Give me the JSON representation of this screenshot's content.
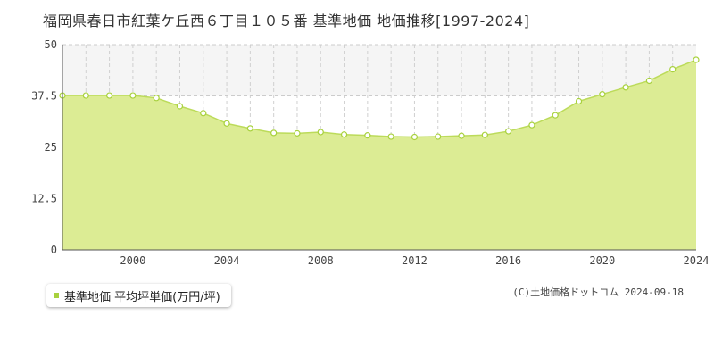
{
  "title": "福岡県春日市紅葉ケ丘西６丁目１０５番 基準地価 地価推移[1997-2024]",
  "legend": {
    "label": "基準地価 平均坪単価(万円/坪)"
  },
  "credit": "(C)土地価格ドットコム 2024-09-18",
  "colors": {
    "fill": "#dcec94",
    "line": "#bcdb5a",
    "marker_stroke": "#a8d13d",
    "band": "#f5f5f5"
  },
  "chart_data": {
    "type": "area",
    "title": "福岡県春日市紅葉ケ丘西６丁目１０５番 基準地価 地価推移[1997-2024]",
    "xlabel": "",
    "ylabel": "",
    "xlim": [
      1997,
      2024
    ],
    "ylim": [
      0,
      50
    ],
    "yticks": [
      0,
      12.5,
      25,
      37.5,
      50
    ],
    "ytick_labels": [
      "0",
      "12.5",
      "25",
      "37.5",
      "50"
    ],
    "xticks": [
      2000,
      2004,
      2008,
      2012,
      2016,
      2020,
      2024
    ],
    "xtick_labels": [
      "2000",
      "2004",
      "2008",
      "2012",
      "2016",
      "2020",
      "2024"
    ],
    "grid": true,
    "legend_position": "bottom-left",
    "series": [
      {
        "name": "基準地価 平均坪単価(万円/坪)",
        "x": [
          1997,
          1998,
          1999,
          2000,
          2001,
          2002,
          2003,
          2004,
          2005,
          2006,
          2007,
          2008,
          2009,
          2010,
          2011,
          2012,
          2013,
          2014,
          2015,
          2016,
          2017,
          2018,
          2019,
          2020,
          2021,
          2022,
          2023,
          2024
        ],
        "values": [
          37.6,
          37.6,
          37.6,
          37.6,
          37.0,
          35.0,
          33.3,
          30.8,
          29.6,
          28.5,
          28.4,
          28.7,
          28.1,
          27.9,
          27.6,
          27.5,
          27.6,
          27.8,
          28.0,
          28.9,
          30.4,
          32.8,
          36.2,
          37.9,
          39.6,
          41.2,
          44.0,
          46.3
        ]
      }
    ]
  }
}
